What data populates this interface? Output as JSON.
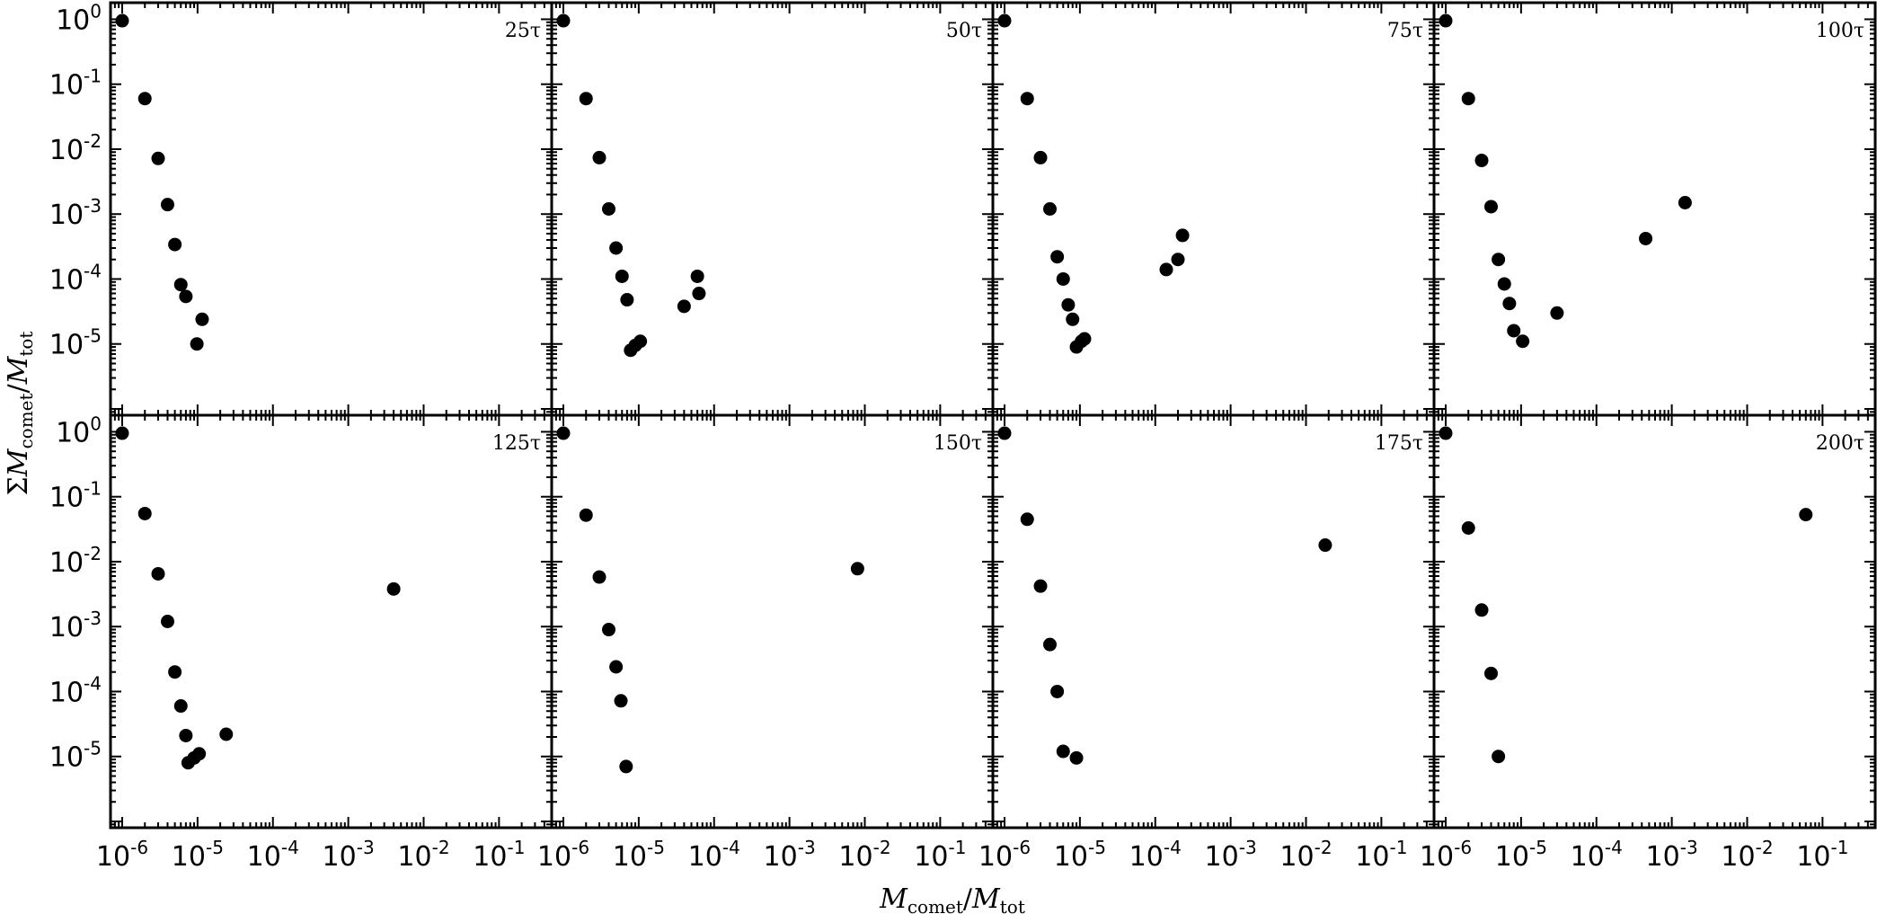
{
  "chart_data": {
    "type": "scatter",
    "layout": "grid 2x4, shared axes",
    "xlabel": "M_comet/M_tot",
    "ylabel": "ΣM_comet/M_tot",
    "xscale": "log",
    "yscale": "log",
    "xlim": [
      7e-07,
      0.5
    ],
    "ylim": [
      8e-07,
      1.8
    ],
    "x_ticks": [
      {
        "value": 1e-06,
        "base": "10",
        "exp": "-6"
      },
      {
        "value": 1e-05,
        "base": "10",
        "exp": "-5"
      },
      {
        "value": 0.0001,
        "base": "10",
        "exp": "-4"
      },
      {
        "value": 0.001,
        "base": "10",
        "exp": "-3"
      },
      {
        "value": 0.01,
        "base": "10",
        "exp": "-2"
      },
      {
        "value": 0.1,
        "base": "10",
        "exp": "-1"
      }
    ],
    "y_ticks": [
      {
        "value": 1,
        "base": "10",
        "exp": "0"
      },
      {
        "value": 0.1,
        "base": "10",
        "exp": "-1"
      },
      {
        "value": 0.01,
        "base": "10",
        "exp": "-2"
      },
      {
        "value": 0.001,
        "base": "10",
        "exp": "-3"
      },
      {
        "value": 0.0001,
        "base": "10",
        "exp": "-4"
      },
      {
        "value": 1e-05,
        "base": "10",
        "exp": "-5"
      }
    ],
    "legend": "none",
    "marker_color": "#000000",
    "panels": [
      {
        "label": "25τ",
        "points": [
          [
            1e-06,
            0.95
          ],
          [
            2e-06,
            0.06
          ],
          [
            3e-06,
            0.0072
          ],
          [
            4e-06,
            0.0014
          ],
          [
            5e-06,
            0.00034
          ],
          [
            6e-06,
            8.2e-05
          ],
          [
            7e-06,
            5.4e-05
          ],
          [
            9.8e-06,
            1e-05
          ],
          [
            1.15e-05,
            2.4e-05
          ]
        ]
      },
      {
        "label": "50τ",
        "points": [
          [
            1e-06,
            0.95
          ],
          [
            2e-06,
            0.06
          ],
          [
            3e-06,
            0.0074
          ],
          [
            4e-06,
            0.0012
          ],
          [
            5e-06,
            0.0003
          ],
          [
            6e-06,
            0.00011
          ],
          [
            7e-06,
            4.8e-05
          ],
          [
            7.8e-06,
            8e-06
          ],
          [
            9e-06,
            9.5e-06
          ],
          [
            1.05e-05,
            1.1e-05
          ],
          [
            4e-05,
            3.8e-05
          ],
          [
            6e-05,
            0.00011
          ],
          [
            6.3e-05,
            6e-05
          ]
        ]
      },
      {
        "label": "75τ",
        "points": [
          [
            1e-06,
            0.95
          ],
          [
            2e-06,
            0.06
          ],
          [
            3e-06,
            0.0074
          ],
          [
            4e-06,
            0.0012
          ],
          [
            5e-06,
            0.00022
          ],
          [
            6e-06,
            0.0001
          ],
          [
            7e-06,
            4e-05
          ],
          [
            8e-06,
            2.4e-05
          ],
          [
            9e-06,
            9e-06
          ],
          [
            1.05e-05,
            1.1e-05
          ],
          [
            1.15e-05,
            1.2e-05
          ],
          [
            0.00014,
            0.00014
          ],
          [
            0.0002,
            0.0002
          ],
          [
            0.00023,
            0.00047
          ]
        ]
      },
      {
        "label": "100τ",
        "points": [
          [
            1e-06,
            0.95
          ],
          [
            2e-06,
            0.06
          ],
          [
            3e-06,
            0.0067
          ],
          [
            4e-06,
            0.0013
          ],
          [
            5e-06,
            0.0002
          ],
          [
            6e-06,
            8.4e-05
          ],
          [
            7e-06,
            4.2e-05
          ],
          [
            8e-06,
            1.6e-05
          ],
          [
            1.05e-05,
            1.1e-05
          ],
          [
            3e-05,
            3e-05
          ],
          [
            0.00045,
            0.00042
          ],
          [
            0.0015,
            0.0015
          ]
        ]
      },
      {
        "label": "125τ",
        "points": [
          [
            1e-06,
            0.95
          ],
          [
            2e-06,
            0.055
          ],
          [
            3e-06,
            0.0065
          ],
          [
            4e-06,
            0.0012
          ],
          [
            5e-06,
            0.0002
          ],
          [
            6e-06,
            6e-05
          ],
          [
            7e-06,
            2.1e-05
          ],
          [
            7.5e-06,
            8e-06
          ],
          [
            9e-06,
            9.5e-06
          ],
          [
            1.05e-05,
            1.1e-05
          ],
          [
            2.4e-05,
            2.2e-05
          ],
          [
            0.004,
            0.0038
          ]
        ]
      },
      {
        "label": "150τ",
        "points": [
          [
            1e-06,
            0.95
          ],
          [
            2e-06,
            0.052
          ],
          [
            3e-06,
            0.0058
          ],
          [
            4e-06,
            0.0009
          ],
          [
            5e-06,
            0.00024
          ],
          [
            5.8e-06,
            7.2e-05
          ],
          [
            6.8e-06,
            7e-06
          ],
          [
            0.008,
            0.0078
          ]
        ]
      },
      {
        "label": "175τ",
        "points": [
          [
            1e-06,
            0.95
          ],
          [
            2e-06,
            0.045
          ],
          [
            3e-06,
            0.0042
          ],
          [
            4e-06,
            0.00053
          ],
          [
            5e-06,
            0.0001
          ],
          [
            6e-06,
            1.2e-05
          ],
          [
            9e-06,
            9.5e-06
          ],
          [
            0.018,
            0.018
          ]
        ]
      },
      {
        "label": "200τ",
        "points": [
          [
            1e-06,
            0.95
          ],
          [
            2e-06,
            0.033
          ],
          [
            3e-06,
            0.0018
          ],
          [
            4e-06,
            0.00019
          ],
          [
            5e-06,
            1e-05
          ],
          [
            0.06,
            0.053
          ]
        ]
      }
    ]
  }
}
